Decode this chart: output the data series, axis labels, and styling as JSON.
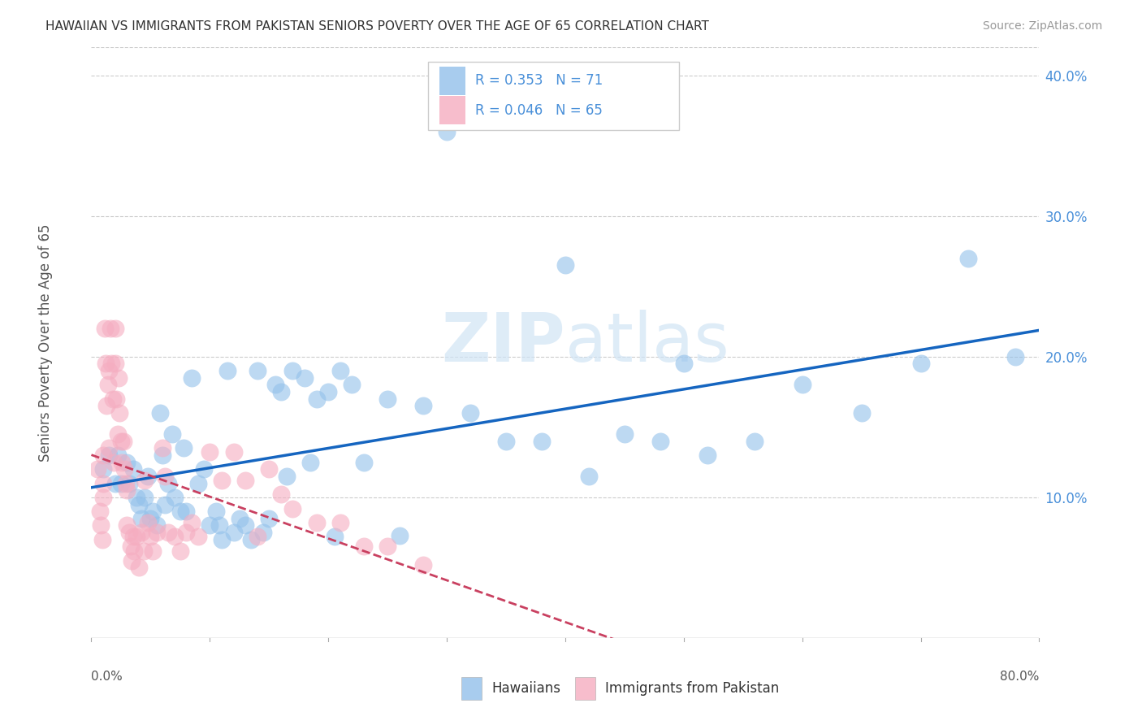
{
  "title": "HAWAIIAN VS IMMIGRANTS FROM PAKISTAN SENIORS POVERTY OVER THE AGE OF 65 CORRELATION CHART",
  "source": "Source: ZipAtlas.com",
  "ylabel": "Seniors Poverty Over the Age of 65",
  "xlim": [
    0.0,
    0.8
  ],
  "ylim": [
    0.0,
    0.42
  ],
  "xtick_vals": [
    0.0,
    0.1,
    0.2,
    0.3,
    0.4,
    0.5,
    0.6,
    0.7,
    0.8
  ],
  "ytick_right_labels": [
    "10.0%",
    "20.0%",
    "30.0%",
    "40.0%"
  ],
  "ytick_right_vals": [
    0.1,
    0.2,
    0.3,
    0.4
  ],
  "grid_color": "#cccccc",
  "background_color": "#ffffff",
  "watermark_zip": "ZIP",
  "watermark_atlas": "atlas",
  "hawaiians_color": "#92c0ea",
  "pakistan_color": "#f5adc0",
  "hawaiians_R": 0.353,
  "hawaiians_N": 71,
  "pakistan_R": 0.046,
  "pakistan_N": 65,
  "hawaiians_line_color": "#1565c0",
  "pakistan_line_color": "#c94060",
  "hawaiians_x": [
    0.01,
    0.015,
    0.02,
    0.022,
    0.025,
    0.03,
    0.032,
    0.035,
    0.038,
    0.04,
    0.042,
    0.045,
    0.048,
    0.05,
    0.052,
    0.055,
    0.058,
    0.06,
    0.062,
    0.065,
    0.068,
    0.07,
    0.075,
    0.078,
    0.08,
    0.085,
    0.09,
    0.095,
    0.1,
    0.105,
    0.108,
    0.11,
    0.115,
    0.12,
    0.125,
    0.13,
    0.135,
    0.14,
    0.145,
    0.15,
    0.155,
    0.16,
    0.165,
    0.17,
    0.18,
    0.185,
    0.19,
    0.2,
    0.205,
    0.21,
    0.22,
    0.23,
    0.25,
    0.26,
    0.28,
    0.3,
    0.32,
    0.35,
    0.38,
    0.4,
    0.42,
    0.45,
    0.48,
    0.5,
    0.52,
    0.56,
    0.6,
    0.65,
    0.7,
    0.74,
    0.78
  ],
  "hawaiians_y": [
    0.12,
    0.13,
    0.11,
    0.13,
    0.11,
    0.125,
    0.11,
    0.12,
    0.1,
    0.095,
    0.085,
    0.1,
    0.115,
    0.085,
    0.09,
    0.08,
    0.16,
    0.13,
    0.095,
    0.11,
    0.145,
    0.1,
    0.09,
    0.135,
    0.09,
    0.185,
    0.11,
    0.12,
    0.08,
    0.09,
    0.08,
    0.07,
    0.19,
    0.075,
    0.085,
    0.08,
    0.07,
    0.19,
    0.075,
    0.085,
    0.18,
    0.175,
    0.115,
    0.19,
    0.185,
    0.125,
    0.17,
    0.175,
    0.072,
    0.19,
    0.18,
    0.125,
    0.17,
    0.073,
    0.165,
    0.36,
    0.16,
    0.14,
    0.14,
    0.265,
    0.115,
    0.145,
    0.14,
    0.195,
    0.13,
    0.14,
    0.18,
    0.16,
    0.195,
    0.27,
    0.2
  ],
  "pakistan_x": [
    0.005,
    0.007,
    0.008,
    0.009,
    0.01,
    0.01,
    0.01,
    0.011,
    0.012,
    0.013,
    0.014,
    0.015,
    0.015,
    0.016,
    0.017,
    0.018,
    0.019,
    0.02,
    0.02,
    0.021,
    0.022,
    0.023,
    0.024,
    0.025,
    0.026,
    0.027,
    0.028,
    0.029,
    0.03,
    0.03,
    0.032,
    0.033,
    0.034,
    0.035,
    0.036,
    0.038,
    0.04,
    0.042,
    0.044,
    0.045,
    0.048,
    0.05,
    0.052,
    0.055,
    0.06,
    0.062,
    0.065,
    0.07,
    0.075,
    0.08,
    0.085,
    0.09,
    0.1,
    0.11,
    0.12,
    0.13,
    0.14,
    0.15,
    0.16,
    0.17,
    0.19,
    0.21,
    0.23,
    0.25,
    0.28
  ],
  "pakistan_y": [
    0.12,
    0.09,
    0.08,
    0.07,
    0.13,
    0.1,
    0.11,
    0.22,
    0.195,
    0.165,
    0.18,
    0.19,
    0.135,
    0.22,
    0.195,
    0.17,
    0.125,
    0.22,
    0.195,
    0.17,
    0.145,
    0.185,
    0.16,
    0.14,
    0.125,
    0.14,
    0.12,
    0.11,
    0.105,
    0.08,
    0.075,
    0.065,
    0.055,
    0.072,
    0.062,
    0.072,
    0.05,
    0.075,
    0.062,
    0.112,
    0.082,
    0.072,
    0.062,
    0.075,
    0.135,
    0.115,
    0.075,
    0.072,
    0.062,
    0.075,
    0.082,
    0.072,
    0.132,
    0.112,
    0.132,
    0.112,
    0.072,
    0.12,
    0.102,
    0.092,
    0.082,
    0.082,
    0.065,
    0.065,
    0.052
  ]
}
